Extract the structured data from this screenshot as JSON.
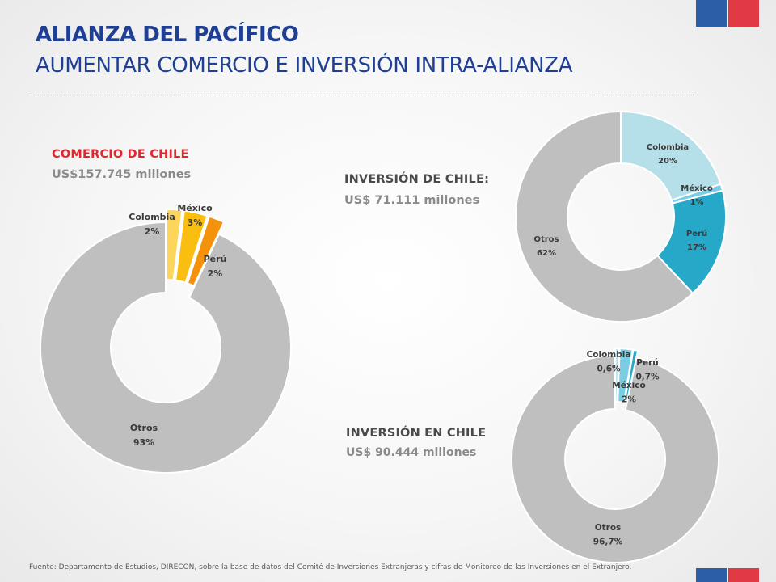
{
  "header": {
    "title": "ALIANZA DEL PACÍFICO",
    "subtitle": "AUMENTAR COMERCIO E INVERSIÓN INTRA-ALIANZA"
  },
  "sections": {
    "comercio": {
      "title": "COMERCIO  DE CHILE",
      "amount": "US$157.745 millones"
    },
    "inversion_de": {
      "title": "INVERSIÓN DE CHILE:",
      "amount": "US$ 71.111 millones"
    },
    "inversion_en": {
      "title": "INVERSIÓN EN CHILE",
      "amount": "US$ 90.444 millones"
    }
  },
  "footer": "Fuente: Departamento de Estudios, DIRECON,  sobre la  base de datos del Comité de Inversiones Extranjeras y cifras de Monitoreo de las Inversiones  en el Extranjero.",
  "colors": {
    "title_blue": "#1f3f93",
    "accent_red": "#e3262e",
    "amount_gray": "#8a8a8a",
    "flag_blue": "#2a5ea6",
    "flag_red": "#e23a45"
  },
  "chart_data": [
    {
      "type": "donut",
      "title": "COMERCIO  DE CHILE",
      "categories": [
        "Colombia",
        "México",
        "Perú",
        "Otros"
      ],
      "values": [
        2,
        3,
        2,
        93
      ],
      "value_labels": [
        "2%",
        "3%",
        "2%",
        "93%"
      ],
      "colors": [
        "#fcd55a",
        "#f9be10",
        "#f4920c",
        "#bfbfbf"
      ],
      "exploded": [
        "Colombia",
        "México",
        "Perú"
      ]
    },
    {
      "type": "donut",
      "title": "INVERSIÓN DE CHILE:",
      "categories": [
        "Colombia",
        "México",
        "Perú",
        "Otros"
      ],
      "values": [
        20,
        1,
        17,
        62
      ],
      "value_labels": [
        "20%",
        "1%",
        "17%",
        "62%"
      ],
      "colors": [
        "#b5dfe9",
        "#79cde4",
        "#26a9c8",
        "#bfbfbf"
      ]
    },
    {
      "type": "donut",
      "title": "INVERSIÓN EN CHILE",
      "categories": [
        "Colombia",
        "México",
        "Perú",
        "Otros"
      ],
      "values": [
        0.6,
        2,
        0.7,
        96.7
      ],
      "value_labels": [
        "0,6%",
        "2%",
        "0,7%",
        "96,7%"
      ],
      "colors": [
        "#b5dfe9",
        "#79cde4",
        "#26a9c8",
        "#bfbfbf"
      ],
      "exploded": [
        "Colombia",
        "México",
        "Perú"
      ]
    }
  ]
}
